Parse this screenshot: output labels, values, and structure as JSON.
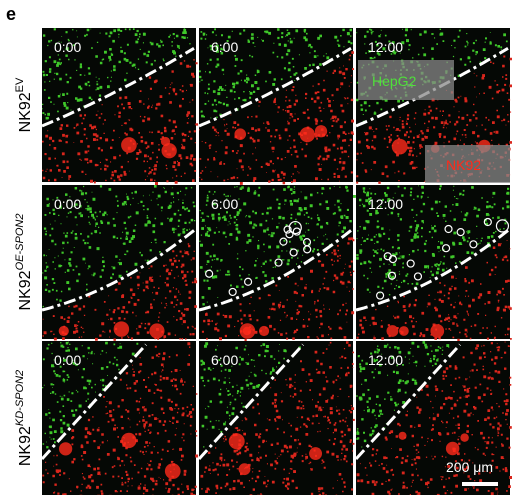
{
  "panel_label": "e",
  "rows": [
    {
      "label": {
        "base": "NK92",
        "sup": "EV"
      },
      "times": [
        "0:00",
        "6:00",
        "12:00"
      ]
    },
    {
      "label": {
        "base": "NK92",
        "sup": "OE-SPON2"
      },
      "times": [
        "0:00",
        "6:00",
        "12:00"
      ]
    },
    {
      "label": {
        "base": "NK92",
        "sup": "KD-SPON2"
      },
      "times": [
        "0:00",
        "6:00",
        "12:00"
      ]
    }
  ],
  "annotations": {
    "hepg2": "HepG2",
    "nk92": "NK92"
  },
  "scale_bar": "200 μm"
}
